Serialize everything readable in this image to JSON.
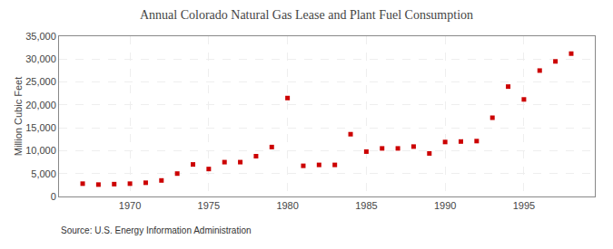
{
  "chart_data": {
    "type": "scatter",
    "title": "Annual Colorado Natural Gas Lease and Plant Fuel Consumption",
    "ylabel": "Million Cubic Feet",
    "source": "Source: U.S. Energy Information Administration",
    "x": [
      1967,
      1968,
      1969,
      1970,
      1971,
      1972,
      1973,
      1974,
      1975,
      1976,
      1977,
      1978,
      1979,
      1980,
      1981,
      1982,
      1983,
      1984,
      1985,
      1986,
      1987,
      1988,
      1989,
      1990,
      1991,
      1992,
      1993,
      1994,
      1995,
      1996,
      1997,
      1998
    ],
    "values": [
      2800,
      2600,
      2700,
      2800,
      3000,
      3500,
      5000,
      7000,
      6000,
      7500,
      7500,
      8800,
      10800,
      21500,
      6700,
      6900,
      6900,
      13600,
      9800,
      10500,
      10500,
      10900,
      9400,
      11900,
      12000,
      12100,
      17200,
      24000,
      21200,
      27500,
      29500,
      31200
    ],
    "color": "#cc0000",
    "marker": "square",
    "xlim": [
      1965.5,
      1999.5
    ],
    "xticks": [
      1970,
      1975,
      1980,
      1985,
      1990,
      1995
    ],
    "ylim": [
      0,
      35000
    ],
    "yticks": [
      0,
      {
        "value": 5000,
        "label": "5,000"
      },
      {
        "value": 10000,
        "label": "10,000"
      },
      {
        "value": 15000,
        "label": "15,000"
      },
      {
        "value": 20000,
        "label": "20,000"
      },
      {
        "value": 25000,
        "label": "25,000"
      },
      {
        "value": 30000,
        "label": "30,000"
      },
      {
        "value": 35000,
        "label": "35,000"
      }
    ],
    "grid": true
  }
}
